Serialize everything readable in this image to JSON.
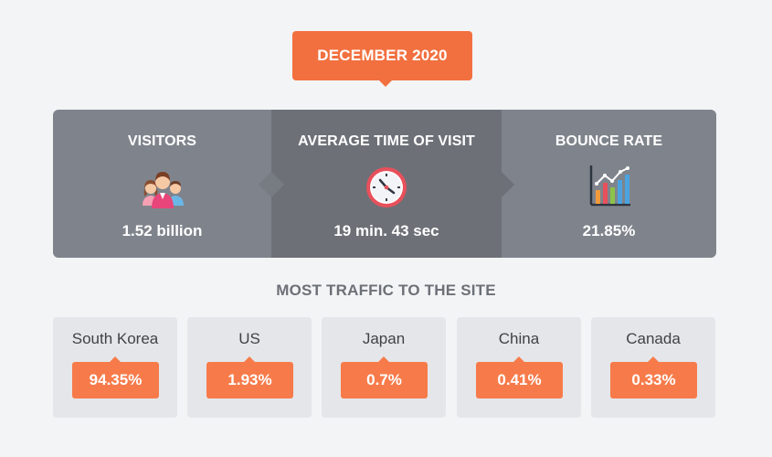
{
  "header": {
    "month_label": "DECEMBER 2020"
  },
  "stats": [
    {
      "title": "VISITORS",
      "value": "1.52 billion",
      "icon": "people-group-icon"
    },
    {
      "title": "AVERAGE TIME OF VISIT",
      "value": "19 min. 43 sec",
      "icon": "clock-icon"
    },
    {
      "title": "BOUNCE RATE",
      "value": "21.85%",
      "icon": "bar-chart-icon"
    }
  ],
  "traffic": {
    "title": "MOST TRAFFIC TO THE SITE",
    "countries": [
      {
        "name": "South Korea",
        "share": "94.35%"
      },
      {
        "name": "US",
        "share": "1.93%"
      },
      {
        "name": "Japan",
        "share": "0.7%"
      },
      {
        "name": "China",
        "share": "0.41%"
      },
      {
        "name": "Canada",
        "share": "0.33%"
      }
    ]
  },
  "colors": {
    "accent": "#f2703f",
    "badge": "#f77b4a",
    "panel": "#7f848c",
    "panel_dark": "#6d7177",
    "card": "#e5e6e9",
    "background": "#f3f4f6"
  }
}
